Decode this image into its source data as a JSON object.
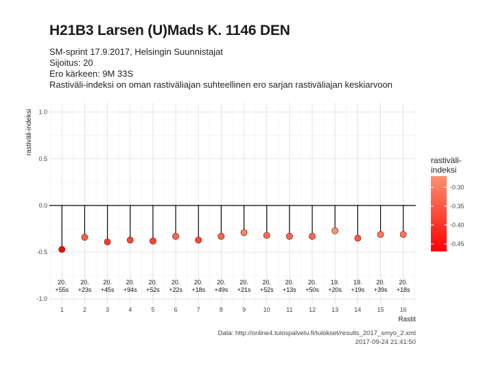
{
  "chart_data": {
    "type": "scatter",
    "title": "H21B3 Larsen (U)Mads K. 1146 DEN",
    "subtitle_lines": [
      "SM-sprint 17.9.2017, Helsingin Suunnistajat",
      "Sijoitus: 20",
      "Ero kärkeen: 9M 33S",
      "Rastiväli-indeksi on oman rastiväliajan suhteellinen ero sarjan rastiväliajan keskiarvoon"
    ],
    "xlabel": "Rastit",
    "ylabel": "rastiväli-indeksi",
    "x": [
      1,
      2,
      3,
      4,
      5,
      6,
      7,
      8,
      9,
      10,
      11,
      12,
      13,
      14,
      15,
      16
    ],
    "y": [
      -0.47,
      -0.34,
      -0.39,
      -0.37,
      -0.38,
      -0.33,
      -0.37,
      -0.33,
      -0.29,
      -0.32,
      -0.33,
      -0.33,
      -0.27,
      -0.35,
      -0.31,
      -0.31
    ],
    "point_labels_rank": [
      "20.",
      "20.",
      "20.",
      "20.",
      "20.",
      "20.",
      "20.",
      "20.",
      "20.",
      "20.",
      "20.",
      "20.",
      "19.",
      "19.",
      "20.",
      "20."
    ],
    "point_labels_diff": [
      "+55s",
      "+23s",
      "+45s",
      "+94s",
      "+52s",
      "+22s",
      "+18s",
      "+49s",
      "+21s",
      "+52s",
      "+13s",
      "+50s",
      "+20s",
      "+19s",
      "+39s",
      "+18s"
    ],
    "xlim": [
      0.45,
      16.55
    ],
    "ylim": [
      -1.05,
      1.1
    ],
    "yticks": [
      1.0,
      0.5,
      0.0,
      -0.5,
      -1.0
    ],
    "ytick_labels": [
      "1.0",
      "0.5",
      "0.0",
      "-0.5",
      "-1.0"
    ],
    "xticks": [
      1,
      2,
      3,
      4,
      5,
      6,
      7,
      8,
      9,
      10,
      11,
      12,
      13,
      14,
      15,
      16
    ],
    "xtick_labels": [
      "1",
      "2",
      "3",
      "4",
      "5",
      "6",
      "7",
      "8",
      "9",
      "10",
      "11",
      "12",
      "13",
      "14",
      "15",
      "16"
    ],
    "grid": true,
    "legend": {
      "title_lines": [
        "rastiväli-",
        "indeksi"
      ],
      "placement": "right",
      "ticks": [
        -0.3,
        -0.35,
        -0.4,
        -0.45
      ],
      "tick_labels": [
        "-0.30",
        "-0.35",
        "-0.40",
        "-0.45"
      ],
      "range": [
        -0.47,
        -0.27
      ],
      "color_low": "#ff0000",
      "color_high": "#fc9272"
    }
  },
  "caption": {
    "source": "Data: http://online4.tulospalvelu.fi/tulokset/results_2017_smyo_2.xml",
    "timestamp": "2017-09-24 21:41:50"
  }
}
